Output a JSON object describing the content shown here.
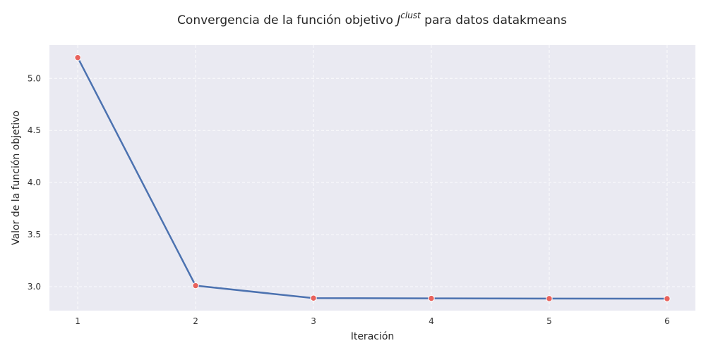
{
  "chart_data": {
    "type": "line",
    "title_main": "Convergencia de la función objetivo ",
    "title_symbol": "J",
    "title_superscript": "clust",
    "title_tail": " para datos datakmeans",
    "xlabel": "Iteración",
    "ylabel": "Valor de la función objetivo",
    "x": [
      1,
      2,
      3,
      4,
      5,
      6
    ],
    "values": [
      5.2,
      3.01,
      2.89,
      2.888,
      2.886,
      2.885
    ],
    "xlim": [
      0.76,
      6.24
    ],
    "ylim": [
      2.77,
      5.32
    ],
    "xticks": [
      1,
      2,
      3,
      4,
      5,
      6
    ],
    "yticks": [
      3.0,
      3.5,
      4.0,
      4.5,
      5.0
    ],
    "ytick_labels": [
      "3.0",
      "3.5",
      "4.0",
      "4.5",
      "5.0"
    ],
    "grid": true,
    "line_color": "#4c72b0",
    "marker_color": "#e8625c",
    "background_color": "#eaeaf2"
  }
}
